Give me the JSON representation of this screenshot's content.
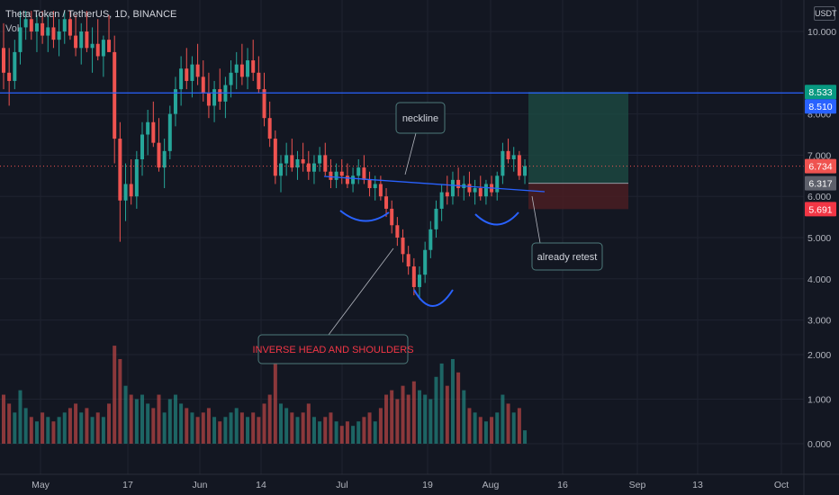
{
  "header": {
    "title": "Theta Token / TetherUS, 1D, BINANCE",
    "volume_label": "Vol",
    "currency": "USDT"
  },
  "colors": {
    "background": "#131722",
    "up": "#26a69a",
    "down": "#ef5350",
    "resistance": "#2962ff",
    "neckline": "#2962ff",
    "target_zone": "#1e4d44",
    "stop_zone": "#4a1d22"
  },
  "chart_data": {
    "type": "candlestick",
    "symbol": "Theta Token / TetherUS",
    "interval": "1D",
    "exchange": "BINANCE",
    "ylim": [
      2.7,
      10.5
    ],
    "x_ticks": [
      "May",
      "17",
      "Jun",
      "14",
      "Jul",
      "19",
      "Aug",
      "16",
      "Sep",
      "13",
      "Oct"
    ],
    "y_ticks": [
      "10.000",
      "8.000",
      "7.000",
      "6.000",
      "5.000",
      "4.000",
      "3.000"
    ],
    "volume_ticks": [
      "2.000",
      "1.000",
      "0.000"
    ],
    "price_labels": [
      {
        "value": 8.533,
        "text": "8.533",
        "color": "#089981"
      },
      {
        "value": 8.51,
        "text": "8.510",
        "color": "#2962ff"
      },
      {
        "value": 6.734,
        "text": "6.734",
        "color": "#ef5350"
      },
      {
        "value": 6.317,
        "text": "6.317",
        "color": "#5d606b"
      },
      {
        "value": 5.691,
        "text": "5.691",
        "color": "#f23645"
      }
    ],
    "resistance_level": 8.51,
    "current_price": 6.734,
    "position": {
      "entry": 6.317,
      "target": 8.533,
      "stop": 5.691
    },
    "annotations": {
      "neckline": "neckline",
      "retest": "already retest",
      "pattern": "INVERSE HEAD AND SHOULDERS"
    },
    "candles": [
      [
        9.6,
        10.2,
        8.6,
        9.0,
        1.1
      ],
      [
        9.0,
        9.6,
        8.2,
        8.8,
        0.9
      ],
      [
        8.8,
        9.8,
        8.6,
        9.5,
        0.7
      ],
      [
        9.5,
        10.5,
        9.2,
        10.1,
        1.2
      ],
      [
        10.1,
        10.5,
        9.8,
        10.3,
        0.8
      ],
      [
        10.3,
        10.5,
        9.8,
        10.0,
        0.6
      ],
      [
        10.0,
        10.4,
        9.5,
        10.2,
        0.5
      ],
      [
        10.2,
        10.5,
        9.7,
        9.9,
        0.7
      ],
      [
        9.9,
        10.4,
        9.5,
        10.1,
        0.6
      ],
      [
        10.1,
        10.5,
        9.6,
        9.8,
        0.5
      ],
      [
        9.8,
        10.3,
        9.4,
        10.0,
        0.6
      ],
      [
        10.0,
        10.5,
        9.7,
        10.3,
        0.7
      ],
      [
        10.3,
        10.5,
        9.8,
        9.9,
        0.8
      ],
      [
        9.9,
        10.4,
        9.4,
        9.6,
        0.9
      ],
      [
        9.6,
        10.2,
        9.2,
        10.0,
        0.7
      ],
      [
        10.0,
        10.5,
        9.5,
        9.6,
        0.8
      ],
      [
        9.6,
        10.1,
        9.0,
        9.7,
        0.6
      ],
      [
        9.7,
        10.3,
        9.3,
        9.4,
        0.7
      ],
      [
        9.4,
        9.9,
        8.9,
        9.8,
        0.6
      ],
      [
        9.8,
        10.4,
        9.5,
        9.5,
        0.9
      ],
      [
        9.5,
        9.9,
        6.8,
        7.4,
        2.2
      ],
      [
        7.4,
        7.8,
        4.9,
        5.9,
        1.9
      ],
      [
        5.9,
        6.8,
        5.4,
        6.3,
        1.3
      ],
      [
        6.3,
        6.9,
        5.8,
        6.0,
        1.1
      ],
      [
        6.0,
        7.1,
        5.7,
        6.9,
        1.0
      ],
      [
        6.9,
        7.8,
        6.5,
        7.5,
        1.1
      ],
      [
        7.5,
        8.1,
        7.0,
        7.8,
        0.9
      ],
      [
        7.8,
        8.3,
        7.2,
        7.3,
        0.8
      ],
      [
        7.3,
        7.9,
        6.6,
        6.7,
        1.1
      ],
      [
        6.7,
        7.4,
        6.2,
        7.1,
        0.7
      ],
      [
        7.1,
        8.2,
        6.9,
        8.0,
        1.0
      ],
      [
        8.0,
        8.9,
        7.7,
        8.6,
        1.1
      ],
      [
        8.6,
        9.4,
        8.2,
        9.1,
        0.9
      ],
      [
        9.1,
        9.6,
        8.6,
        8.8,
        0.8
      ],
      [
        8.8,
        9.4,
        8.4,
        9.2,
        0.7
      ],
      [
        9.2,
        9.7,
        8.7,
        8.9,
        0.6
      ],
      [
        8.9,
        9.3,
        8.3,
        8.5,
        0.7
      ],
      [
        8.5,
        9.0,
        7.9,
        8.2,
        0.8
      ],
      [
        8.2,
        8.8,
        7.8,
        8.6,
        0.6
      ],
      [
        8.6,
        9.1,
        8.1,
        8.3,
        0.5
      ],
      [
        8.3,
        8.9,
        7.9,
        8.7,
        0.6
      ],
      [
        8.7,
        9.3,
        8.4,
        9.0,
        0.7
      ],
      [
        9.0,
        9.5,
        8.6,
        9.2,
        0.8
      ],
      [
        9.2,
        9.7,
        8.7,
        8.9,
        0.7
      ],
      [
        8.9,
        9.6,
        8.6,
        9.3,
        0.6
      ],
      [
        9.3,
        9.8,
        8.8,
        9.0,
        0.7
      ],
      [
        9.0,
        9.4,
        8.5,
        8.6,
        0.6
      ],
      [
        8.6,
        9.0,
        7.7,
        7.9,
        0.9
      ],
      [
        7.9,
        8.3,
        7.2,
        7.4,
        1.1
      ],
      [
        7.4,
        7.6,
        6.3,
        6.5,
        1.9
      ],
      [
        6.5,
        7.0,
        6.1,
        6.8,
        0.9
      ],
      [
        6.8,
        7.3,
        6.5,
        7.0,
        0.8
      ],
      [
        7.0,
        7.4,
        6.6,
        6.7,
        0.7
      ],
      [
        6.7,
        7.1,
        6.4,
        6.9,
        0.6
      ],
      [
        6.9,
        7.3,
        6.6,
        6.8,
        0.7
      ],
      [
        6.8,
        7.1,
        6.4,
        6.6,
        0.9
      ],
      [
        6.6,
        7.0,
        6.3,
        6.8,
        0.6
      ],
      [
        6.8,
        7.2,
        6.6,
        7.0,
        0.5
      ],
      [
        7.0,
        7.3,
        6.5,
        6.6,
        0.6
      ],
      [
        6.6,
        6.9,
        6.2,
        6.4,
        0.7
      ],
      [
        6.4,
        6.8,
        6.2,
        6.6,
        0.5
      ],
      [
        6.6,
        6.9,
        6.3,
        6.5,
        0.4
      ],
      [
        6.5,
        6.8,
        6.2,
        6.3,
        0.5
      ],
      [
        6.3,
        6.7,
        6.1,
        6.5,
        0.4
      ],
      [
        6.5,
        6.9,
        6.3,
        6.7,
        0.5
      ],
      [
        6.7,
        7.0,
        6.3,
        6.4,
        0.6
      ],
      [
        6.4,
        6.6,
        6.0,
        6.2,
        0.7
      ],
      [
        6.2,
        6.5,
        5.9,
        6.3,
        0.5
      ],
      [
        6.3,
        6.5,
        5.9,
        6.0,
        0.8
      ],
      [
        6.0,
        6.2,
        5.5,
        5.7,
        1.1
      ],
      [
        5.7,
        5.9,
        5.1,
        5.3,
        1.2
      ],
      [
        5.3,
        5.5,
        4.8,
        5.0,
        1.0
      ],
      [
        5.0,
        5.2,
        4.4,
        4.6,
        1.3
      ],
      [
        4.6,
        4.8,
        4.1,
        4.3,
        1.1
      ],
      [
        4.3,
        4.5,
        3.6,
        3.8,
        1.4
      ],
      [
        3.8,
        4.3,
        3.5,
        4.1,
        1.2
      ],
      [
        4.1,
        4.9,
        3.9,
        4.7,
        1.1
      ],
      [
        4.7,
        5.4,
        4.5,
        5.2,
        1.0
      ],
      [
        5.2,
        5.9,
        5.0,
        5.7,
        1.5
      ],
      [
        5.7,
        6.3,
        5.4,
        6.1,
        1.8
      ],
      [
        6.1,
        6.5,
        5.8,
        6.0,
        1.3
      ],
      [
        6.0,
        6.6,
        5.8,
        6.4,
        1.9
      ],
      [
        6.4,
        6.7,
        6.0,
        6.2,
        1.6
      ],
      [
        6.2,
        6.5,
        5.9,
        6.3,
        1.2
      ],
      [
        6.3,
        6.6,
        6.0,
        6.1,
        0.8
      ],
      [
        6.1,
        6.4,
        5.8,
        6.2,
        0.7
      ],
      [
        6.2,
        6.5,
        5.9,
        6.0,
        0.6
      ],
      [
        6.0,
        6.4,
        5.8,
        6.3,
        0.5
      ],
      [
        6.3,
        6.5,
        6.0,
        6.1,
        0.6
      ],
      [
        6.1,
        6.6,
        5.9,
        6.5,
        0.7
      ],
      [
        6.5,
        7.3,
        6.3,
        7.1,
        1.1
      ],
      [
        7.1,
        7.4,
        6.8,
        6.9,
        0.9
      ],
      [
        6.9,
        7.2,
        6.6,
        7.0,
        0.7
      ],
      [
        7.0,
        7.1,
        6.4,
        6.5,
        0.8
      ],
      [
        6.5,
        6.9,
        6.3,
        6.734,
        0.3
      ]
    ]
  }
}
